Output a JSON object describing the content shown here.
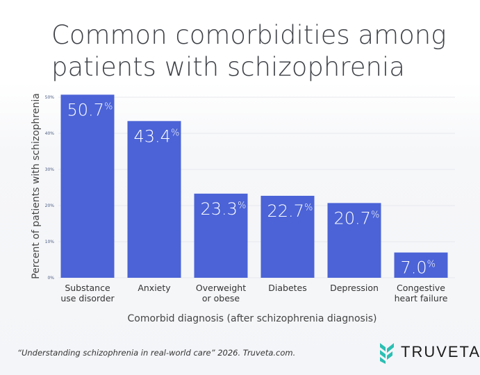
{
  "chart_data": {
    "type": "bar",
    "title": "Common comorbidities among patients with schizophrenia",
    "xlabel": "Comorbid diagnosis (after schizophrenia diagnosis)",
    "ylabel": "Percent of patients with schizophrenia",
    "categories": [
      [
        "Substance",
        "use disorder"
      ],
      [
        "Anxiety"
      ],
      [
        "Overweight",
        "or obese"
      ],
      [
        "Diabetes"
      ],
      [
        "Depression"
      ],
      [
        "Congestive",
        "heart failure"
      ]
    ],
    "values": [
      50.7,
      43.4,
      23.3,
      22.7,
      20.7,
      7.0
    ],
    "data_labels": [
      "50.7",
      "43.4",
      "23.3",
      "22.7",
      "20.7",
      "7.0"
    ],
    "data_label_unit": "%",
    "ylim": [
      0,
      50
    ],
    "yticks": [
      "0%",
      "10%",
      "20%",
      "30%",
      "40%",
      "50%"
    ],
    "grid": true,
    "bar_color": "#4b63d6"
  },
  "source": "“Understanding schizophrenia in real-world care” 2026. Truveta.com.",
  "logo": {
    "text": "TRUVETA",
    "color": "#2bbfb3"
  }
}
